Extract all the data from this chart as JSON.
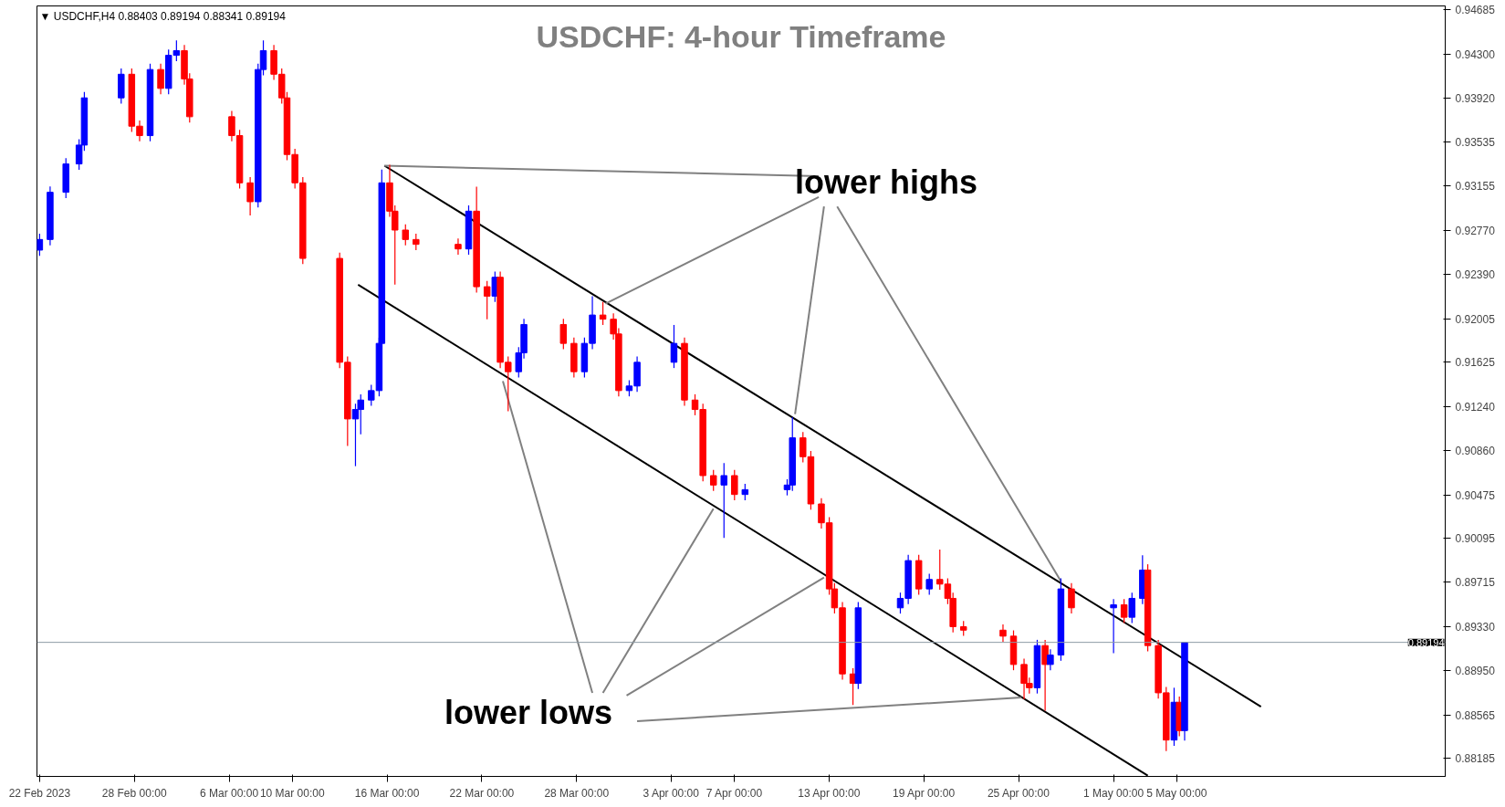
{
  "chart_data": {
    "type": "candlestick",
    "title": "USDCHF: 4-hour Timeframe",
    "subtitle": "▼ USDCHF,H4  0.88403 0.89194 0.88341 0.89194",
    "x": [
      "2023-02-22T00:00",
      "2023-02-22T16:00",
      "2023-02-23T16:00",
      "2023-02-24T12:00",
      "2023-02-24T20:00",
      "2023-02-27T04:00",
      "2023-02-27T20:00",
      "2023-02-28T08:00",
      "2023-03-01T00:00",
      "2023-03-01T16:00",
      "2023-03-02T04:00",
      "2023-03-02T16:00",
      "2023-03-03T04:00",
      "2023-03-03T12:00",
      "2023-03-06T04:00",
      "2023-03-06T16:00",
      "2023-03-07T08:00",
      "2023-03-07T20:00",
      "2023-03-08T04:00",
      "2023-03-08T20:00",
      "2023-03-09T08:00",
      "2023-03-09T16:00",
      "2023-03-10T04:00",
      "2023-03-10T16:00",
      "2023-03-13T00:00",
      "2023-03-13T12:00",
      "2023-03-14T00:00",
      "2023-03-14T08:00",
      "2023-03-15T00:00",
      "2023-03-15T12:00",
      "2023-03-15T16:00",
      "2023-03-16T04:00",
      "2023-03-16T12:00",
      "2023-03-17T04:00",
      "2023-03-17T20:00",
      "2023-03-20T12:00",
      "2023-03-21T04:00",
      "2023-03-21T16:00",
      "2023-03-22T08:00",
      "2023-03-22T20:00",
      "2023-03-23T04:00",
      "2023-03-23T16:00",
      "2023-03-24T08:00",
      "2023-03-24T16:00",
      "2023-03-27T04:00",
      "2023-03-27T20:00",
      "2023-03-28T12:00",
      "2023-03-29T00:00",
      "2023-03-29T16:00",
      "2023-03-30T08:00",
      "2023-03-30T16:00",
      "2023-03-31T08:00",
      "2023-03-31T20:00",
      "2023-04-03T04:00",
      "2023-04-03T20:00",
      "2023-04-04T12:00",
      "2023-04-05T00:00",
      "2023-04-05T16:00",
      "2023-04-06T08:00",
      "2023-04-07T00:00",
      "2023-04-07T16:00",
      "2023-04-10T08:00",
      "2023-04-10T16:00",
      "2023-04-11T08:00",
      "2023-04-11T20:00",
      "2023-04-12T12:00",
      "2023-04-13T00:00",
      "2023-04-13T08:00",
      "2023-04-13T20:00",
      "2023-04-14T12:00",
      "2023-04-14T20:00",
      "2023-04-17T12:00",
      "2023-04-18T00:00",
      "2023-04-18T16:00",
      "2023-04-19T08:00",
      "2023-04-20T00:00",
      "2023-04-20T12:00",
      "2023-04-20T20:00",
      "2023-04-21T12:00",
      "2023-04-24T00:00",
      "2023-04-24T16:00",
      "2023-04-25T08:00",
      "2023-04-25T16:00",
      "2023-04-26T04:00",
      "2023-04-26T16:00",
      "2023-04-27T00:00",
      "2023-04-27T16:00",
      "2023-04-28T08:00",
      "2023-05-01T00:00",
      "2023-05-01T16:00",
      "2023-05-02T04:00",
      "2023-05-02T20:00",
      "2023-05-03T04:00",
      "2023-05-03T20:00",
      "2023-05-04T08:00",
      "2023-05-04T20:00",
      "2023-05-05T04:00",
      "2023-05-05T12:00"
    ],
    "ohlc": [
      [
        0.926,
        0.92742,
        0.9255,
        0.92692
      ],
      [
        0.92692,
        0.93152,
        0.92642,
        0.93102
      ],
      [
        0.93102,
        0.93398,
        0.93052,
        0.93348
      ],
      [
        0.93348,
        0.93562,
        0.93298,
        0.93512
      ],
      [
        0.93512,
        0.93972,
        0.93462,
        0.93922
      ],
      [
        0.93922,
        0.94177,
        0.93872,
        0.94127
      ],
      [
        0.94127,
        0.94177,
        0.93626,
        0.93676
      ],
      [
        0.93676,
        0.93726,
        0.93544,
        0.93594
      ],
      [
        0.93594,
        0.94218,
        0.93544,
        0.94168
      ],
      [
        0.94168,
        0.94218,
        0.93954,
        0.94004
      ],
      [
        0.94004,
        0.94341,
        0.93954,
        0.94291
      ],
      [
        0.94291,
        0.9442,
        0.94241,
        0.94332
      ],
      [
        0.94332,
        0.94382,
        0.94036,
        0.94086
      ],
      [
        0.94086,
        0.94136,
        0.93708,
        0.93758
      ],
      [
        0.93758,
        0.93808,
        0.93544,
        0.93594
      ],
      [
        0.93594,
        0.93644,
        0.93134,
        0.93184
      ],
      [
        0.93184,
        0.93234,
        0.929,
        0.9302
      ],
      [
        0.9302,
        0.94218,
        0.9297,
        0.94168
      ],
      [
        0.94168,
        0.9442,
        0.94118,
        0.94332
      ],
      [
        0.94332,
        0.94382,
        0.94077,
        0.94127
      ],
      [
        0.94127,
        0.94177,
        0.93872,
        0.93922
      ],
      [
        0.93922,
        0.93972,
        0.9338,
        0.9343
      ],
      [
        0.9343,
        0.9348,
        0.93134,
        0.93184
      ],
      [
        0.93184,
        0.93234,
        0.92478,
        0.92528
      ],
      [
        0.92528,
        0.92578,
        0.91576,
        0.91626
      ],
      [
        0.91626,
        0.91676,
        0.909,
        0.91134
      ],
      [
        0.91134,
        0.91266,
        0.90724,
        0.91216
      ],
      [
        0.91216,
        0.91348,
        0.91,
        0.91298
      ],
      [
        0.91298,
        0.9143,
        0.91248,
        0.9138
      ],
      [
        0.9138,
        0.9184,
        0.9133,
        0.9179
      ],
      [
        0.9179,
        0.933,
        0.9174,
        0.93184
      ],
      [
        0.93184,
        0.9334,
        0.92888,
        0.92938
      ],
      [
        0.92938,
        0.92988,
        0.923,
        0.92774
      ],
      [
        0.92774,
        0.92824,
        0.92642,
        0.92692
      ],
      [
        0.92692,
        0.92742,
        0.926,
        0.9265
      ],
      [
        0.9265,
        0.927,
        0.9256,
        0.9261
      ],
      [
        0.9261,
        0.92988,
        0.9256,
        0.92938
      ],
      [
        0.92938,
        0.9315,
        0.92232,
        0.92282
      ],
      [
        0.92282,
        0.92332,
        0.92,
        0.922
      ],
      [
        0.922,
        0.92414,
        0.9215,
        0.92364
      ],
      [
        0.92364,
        0.92414,
        0.91576,
        0.91626
      ],
      [
        0.91626,
        0.91676,
        0.912,
        0.91544
      ],
      [
        0.91544,
        0.91758,
        0.91494,
        0.91708
      ],
      [
        0.91708,
        0.92004,
        0.91658,
        0.91954
      ],
      [
        0.91954,
        0.92004,
        0.9174,
        0.9179
      ],
      [
        0.9179,
        0.9184,
        0.91494,
        0.91544
      ],
      [
        0.91544,
        0.9184,
        0.91494,
        0.9179
      ],
      [
        0.9179,
        0.922,
        0.9174,
        0.92036
      ],
      [
        0.92036,
        0.9215,
        0.9195,
        0.92
      ],
      [
        0.92,
        0.9205,
        0.91822,
        0.91872
      ],
      [
        0.91872,
        0.91922,
        0.9133,
        0.9138
      ],
      [
        0.9138,
        0.9147,
        0.9133,
        0.9142
      ],
      [
        0.9142,
        0.91676,
        0.9137,
        0.91626
      ],
      [
        0.91626,
        0.9195,
        0.91576,
        0.9179
      ],
      [
        0.9179,
        0.9184,
        0.91248,
        0.91298
      ],
      [
        0.91298,
        0.91348,
        0.91166,
        0.91216
      ],
      [
        0.91216,
        0.91266,
        0.90592,
        0.90642
      ],
      [
        0.90642,
        0.90692,
        0.9051,
        0.9056
      ],
      [
        0.9056,
        0.9075,
        0.901,
        0.90642
      ],
      [
        0.90642,
        0.90692,
        0.90428,
        0.90478
      ],
      [
        0.90478,
        0.9057,
        0.90428,
        0.9052
      ],
      [
        0.9052,
        0.9061,
        0.9047,
        0.9056
      ],
      [
        0.9056,
        0.9115,
        0.9051,
        0.9097
      ],
      [
        0.9097,
        0.9102,
        0.90756,
        0.90806
      ],
      [
        0.90806,
        0.90856,
        0.90346,
        0.90396
      ],
      [
        0.90396,
        0.90446,
        0.90182,
        0.90232
      ],
      [
        0.90232,
        0.90282,
        0.89608,
        0.89658
      ],
      [
        0.89658,
        0.89708,
        0.89444,
        0.89494
      ],
      [
        0.89494,
        0.89544,
        0.8887,
        0.8892
      ],
      [
        0.8892,
        0.8897,
        0.8865,
        0.88838
      ],
      [
        0.88838,
        0.89544,
        0.88788,
        0.89494
      ],
      [
        0.89494,
        0.89626,
        0.89444,
        0.89576
      ],
      [
        0.89576,
        0.89954,
        0.89526,
        0.89904
      ],
      [
        0.89904,
        0.89954,
        0.89608,
        0.89658
      ],
      [
        0.89658,
        0.8979,
        0.89608,
        0.8974
      ],
      [
        0.8974,
        0.9,
        0.8965,
        0.897
      ],
      [
        0.897,
        0.8975,
        0.89526,
        0.89576
      ],
      [
        0.89576,
        0.89626,
        0.8928,
        0.8933
      ],
      [
        0.8933,
        0.8938,
        0.8925,
        0.893
      ],
      [
        0.893,
        0.8935,
        0.89198,
        0.89248
      ],
      [
        0.89248,
        0.89298,
        0.88952,
        0.89002
      ],
      [
        0.89002,
        0.89052,
        0.887,
        0.88838
      ],
      [
        0.88838,
        0.88888,
        0.8875,
        0.888
      ],
      [
        0.888,
        0.89216,
        0.8875,
        0.89166
      ],
      [
        0.89166,
        0.89216,
        0.886,
        0.89002
      ],
      [
        0.89002,
        0.89134,
        0.88952,
        0.89084
      ],
      [
        0.89084,
        0.8975,
        0.89034,
        0.89658
      ],
      [
        0.89658,
        0.89708,
        0.89444,
        0.89494
      ],
      [
        0.89494,
        0.8957,
        0.891,
        0.8952
      ],
      [
        0.8952,
        0.8957,
        0.89362,
        0.89412
      ],
      [
        0.89412,
        0.89626,
        0.89362,
        0.89576
      ],
      [
        0.89576,
        0.8995,
        0.89526,
        0.89822
      ],
      [
        0.89822,
        0.89872,
        0.89116,
        0.89166
      ],
      [
        0.89166,
        0.89216,
        0.88706,
        0.88756
      ],
      [
        0.88756,
        0.88806,
        0.8825,
        0.88346
      ],
      [
        0.88346,
        0.888,
        0.88296,
        0.88674
      ],
      [
        0.88674,
        0.88724,
        0.88378,
        0.88428
      ],
      [
        0.88428,
        0.89194,
        0.88341,
        0.89194
      ]
    ],
    "colors": [
      "#0000ff",
      "#0000ff",
      "#0000ff",
      "#0000ff",
      "#0000ff",
      "#0000ff",
      "#ff0000",
      "#ff0000",
      "#0000ff",
      "#ff0000",
      "#0000ff",
      "#0000ff",
      "#ff0000",
      "#ff0000",
      "#ff0000",
      "#ff0000",
      "#ff0000",
      "#0000ff",
      "#0000ff",
      "#ff0000",
      "#ff0000",
      "#ff0000",
      "#ff0000",
      "#ff0000",
      "#ff0000",
      "#ff0000",
      "#0000ff",
      "#0000ff",
      "#0000ff",
      "#0000ff",
      "#0000ff",
      "#ff0000",
      "#ff0000",
      "#ff0000",
      "#ff0000",
      "#ff0000",
      "#0000ff",
      "#ff0000",
      "#ff0000",
      "#0000ff",
      "#ff0000",
      "#ff0000",
      "#0000ff",
      "#0000ff",
      "#ff0000",
      "#ff0000",
      "#0000ff",
      "#0000ff",
      "#ff0000",
      "#ff0000",
      "#ff0000",
      "#0000ff",
      "#0000ff",
      "#0000ff",
      "#ff0000",
      "#ff0000",
      "#ff0000",
      "#ff0000",
      "#0000ff",
      "#ff0000",
      "#0000ff",
      "#0000ff",
      "#0000ff",
      "#ff0000",
      "#ff0000",
      "#ff0000",
      "#ff0000",
      "#ff0000",
      "#ff0000",
      "#ff0000",
      "#0000ff",
      "#0000ff",
      "#0000ff",
      "#ff0000",
      "#0000ff",
      "#ff0000",
      "#ff0000",
      "#ff0000",
      "#ff0000",
      "#ff0000",
      "#ff0000",
      "#ff0000",
      "#ff0000",
      "#0000ff",
      "#ff0000",
      "#0000ff",
      "#0000ff",
      "#ff0000",
      "#0000ff",
      "#ff0000",
      "#0000ff",
      "#0000ff",
      "#ff0000",
      "#ff0000",
      "#ff0000",
      "#0000ff",
      "#ff0000",
      "#0000ff"
    ],
    "series": [
      {
        "type": "line",
        "color": "#000000",
        "x": [
          "2023-03-15T20:00",
          "2023-05-10T08:00"
        ],
        "values": [
          0.93333,
          0.88636
        ]
      },
      {
        "type": "line",
        "color": "#000000",
        "x": [
          "2023-03-14T04:00",
          "2023-05-03T04:00"
        ],
        "values": [
          0.923,
          0.88037
        ]
      },
      {
        "type": "line",
        "color": "#808080",
        "x": [
          "2023-04-12T08:00",
          "2023-03-15T20:00"
        ],
        "values": [
          0.93242,
          0.93332
        ]
      },
      {
        "type": "line",
        "color": "#808080",
        "x": [
          "2023-04-12T08:00",
          "2023-03-29T20:00"
        ],
        "values": [
          0.93061,
          0.92135
        ]
      },
      {
        "type": "line",
        "color": "#808080",
        "x": [
          "2023-04-12T16:00",
          "2023-04-10T20:00"
        ],
        "values": [
          0.92979,
          0.91175
        ]
      },
      {
        "type": "line",
        "color": "#808080",
        "x": [
          "2023-04-13T12:00",
          "2023-04-27T16:00"
        ],
        "values": [
          0.92979,
          0.89724
        ]
      },
      {
        "type": "line",
        "color": "#808080",
        "x": [
          "2023-03-29T00:00",
          "2023-03-23T08:00"
        ],
        "values": [
          0.88756,
          0.91462
        ]
      },
      {
        "type": "line",
        "color": "#808080",
        "x": [
          "2023-03-29T16:00",
          "2023-04-05T16:00"
        ],
        "values": [
          0.88756,
          0.90355
        ]
      },
      {
        "type": "line",
        "color": "#808080",
        "x": [
          "2023-03-31T04:00",
          "2023-04-12T16:00"
        ],
        "values": [
          0.88732,
          0.89757
        ]
      },
      {
        "type": "line",
        "color": "#808080",
        "x": [
          "2023-03-31T20:00",
          "2023-04-25T04:00"
        ],
        "values": [
          0.8851,
          0.88715
        ]
      }
    ],
    "annotations": [
      "lower highs",
      "lower lows"
    ],
    "ref_lines": [
      {
        "axis": "y",
        "value": 0.89194,
        "label": "0.89194",
        "color": "#8c9aa5"
      }
    ],
    "xlim": [
      "2023-02-21T20:00",
      "2023-05-22T00:00"
    ],
    "ylim": [
      0.8803,
      0.9472
    ],
    "xticks": [
      {
        "value": "2023-02-22T00:00",
        "label": "22 Feb 2023"
      },
      {
        "value": "2023-02-28T00:00",
        "label": "28 Feb 00:00"
      },
      {
        "value": "2023-03-06T00:00",
        "label": "6 Mar 00:00"
      },
      {
        "value": "2023-03-10T00:00",
        "label": "10 Mar 00:00"
      },
      {
        "value": "2023-03-16T00:00",
        "label": "16 Mar 00:00"
      },
      {
        "value": "2023-03-22T00:00",
        "label": "22 Mar 00:00"
      },
      {
        "value": "2023-03-28T00:00",
        "label": "28 Mar 00:00"
      },
      {
        "value": "2023-04-03T00:00",
        "label": "3 Apr 00:00"
      },
      {
        "value": "2023-04-07T00:00",
        "label": "7 Apr 00:00"
      },
      {
        "value": "2023-04-13T00:00",
        "label": "13 Apr 00:00"
      },
      {
        "value": "2023-04-19T00:00",
        "label": "19 Apr 00:00"
      },
      {
        "value": "2023-04-25T00:00",
        "label": "25 Apr 00:00"
      },
      {
        "value": "2023-05-01T00:00",
        "label": "1 May 00:00"
      },
      {
        "value": "2023-05-05T00:00",
        "label": "5 May 00:00"
      }
    ],
    "yticks": [
      0.94685,
      {
        "value": 0.943,
        "label": "0.94300"
      },
      {
        "value": 0.9392,
        "label": "0.93920"
      },
      0.93535,
      0.93155,
      {
        "value": 0.9277,
        "label": "0.92770"
      },
      {
        "value": 0.9239,
        "label": "0.92390"
      },
      0.92005,
      0.91625,
      {
        "value": 0.9124,
        "label": "0.91240"
      },
      {
        "value": 0.9086,
        "label": "0.90860"
      },
      0.90475,
      0.90095,
      0.89715,
      {
        "value": 0.8933,
        "label": "0.89330"
      },
      {
        "value": 0.8895,
        "label": "0.88950"
      },
      0.88565,
      0.88185
    ],
    "grid": false
  }
}
